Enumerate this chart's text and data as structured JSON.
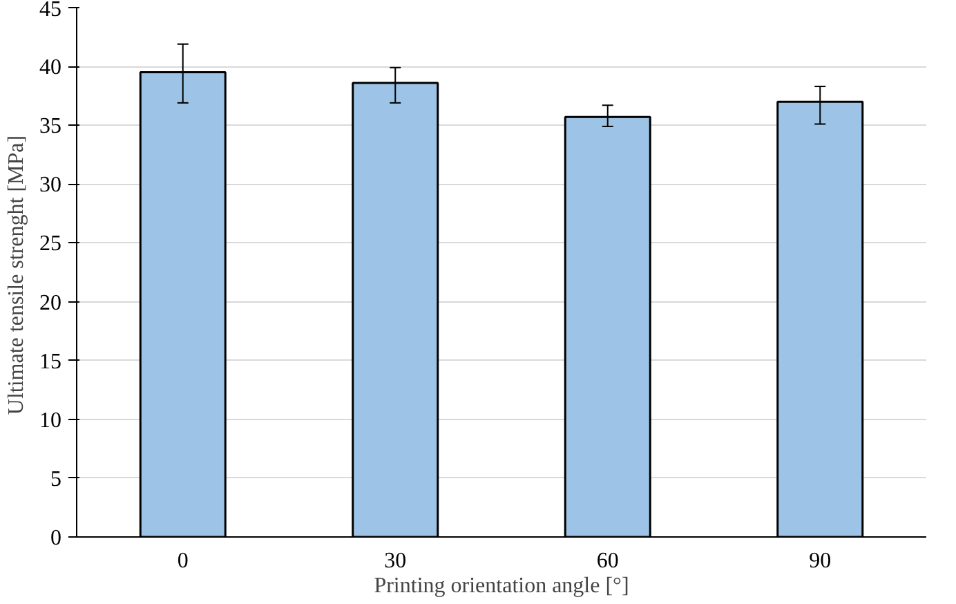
{
  "chart_data": {
    "type": "bar",
    "xlabel": "Printing orientation angle [°]",
    "ylabel": "Ultimate tensile strenght  [MPa]",
    "categories": [
      "0",
      "30",
      "60",
      "90"
    ],
    "values": [
      39.5,
      38.6,
      35.7,
      37.0
    ],
    "errors": [
      [
        36.9,
        41.9
      ],
      [
        36.9,
        39.9
      ],
      [
        34.9,
        36.7
      ],
      [
        35.1,
        38.3
      ]
    ],
    "color": "#9dc3e6",
    "ylim": [
      0,
      45
    ],
    "yticks": [
      0,
      5,
      10,
      15,
      20,
      25,
      30,
      35,
      40,
      45
    ],
    "grid": "y"
  }
}
